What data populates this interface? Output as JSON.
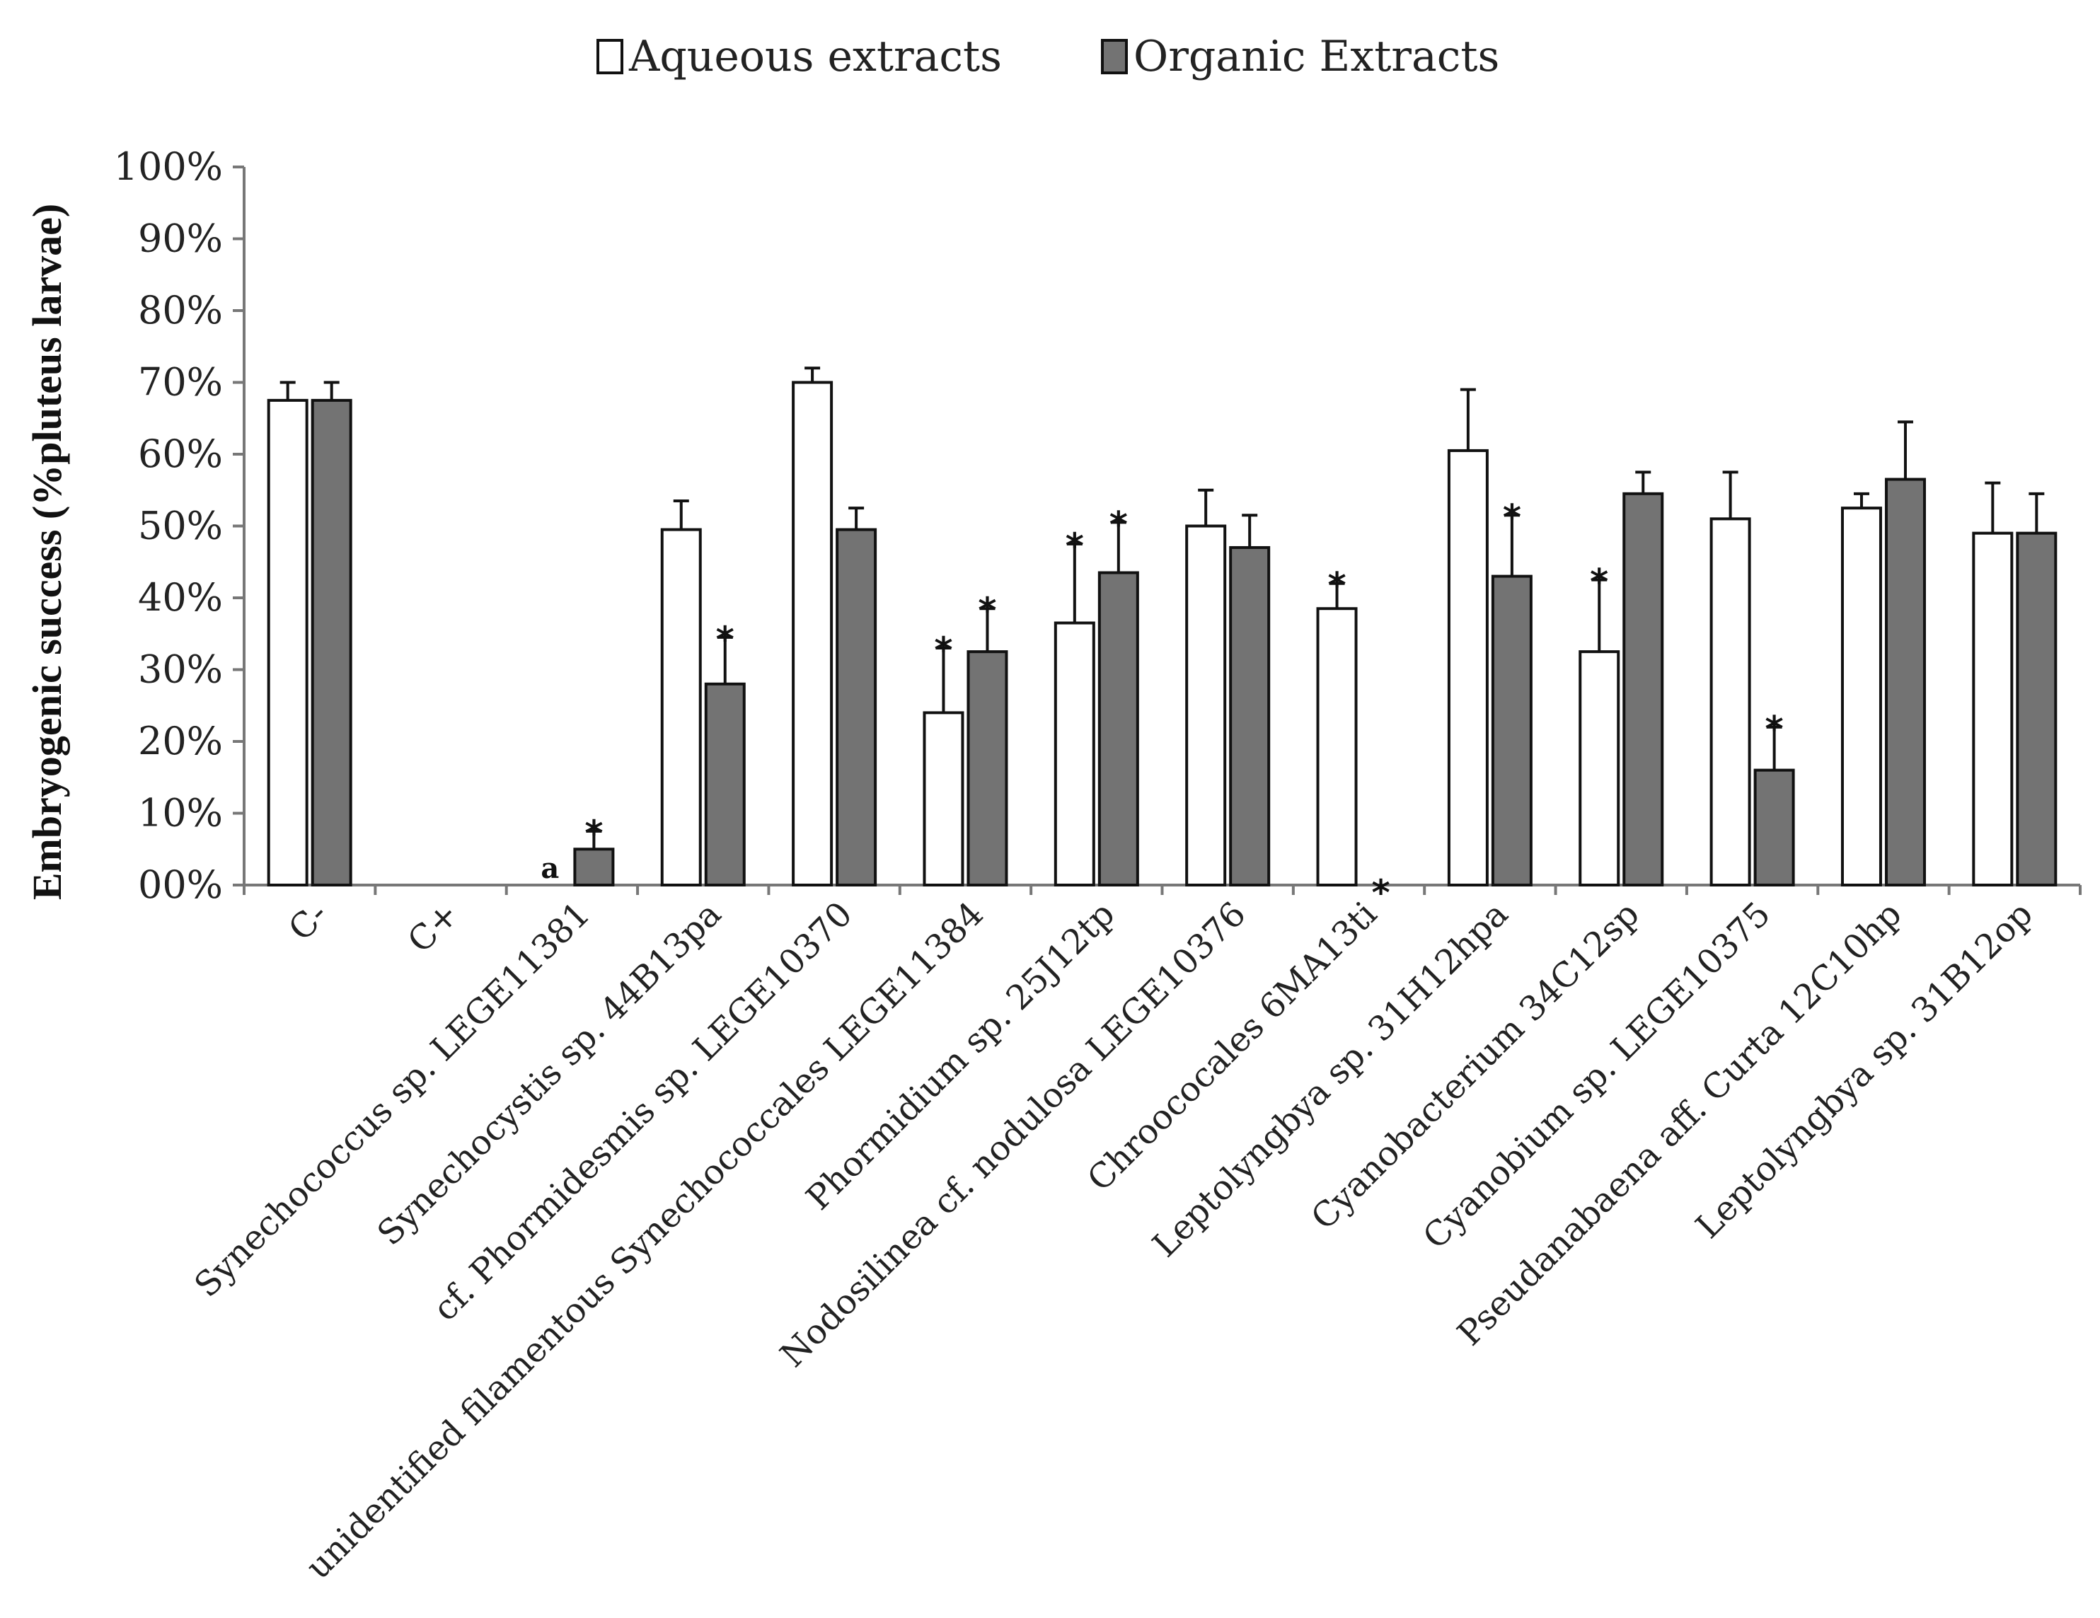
{
  "chart_data": {
    "type": "bar",
    "title": "",
    "xlabel": "",
    "ylabel": "Embryogenic success  (%pluteus larvae)",
    "ylim": [
      0,
      100
    ],
    "ytick_step": 10,
    "ytick_labels": [
      "00%",
      "10%",
      "20%",
      "30%",
      "40%",
      "50%",
      "60%",
      "70%",
      "80%",
      "90%",
      "100%"
    ],
    "legend_position": "top-center",
    "grid": false,
    "categories": [
      "C-",
      "C+",
      "Synechococcus sp. LEGE11381",
      "Synechocystis sp. 44B13pa",
      "cf. Phormidesmis sp. LEGE10370",
      "unidentified filamentous Synechococcales LEGE11384",
      "Phormidium sp. 25J12tp",
      "Nodosilinea cf. nodulosa LEGE10376",
      "Chroococales 6MA13ti",
      "Leptolyngbya sp. 31H12hpa",
      "Cyanobacterium 34C12sp",
      "Cyanobium sp. LEGE10375",
      "Pseudanabaena aff. Curta 12C10hp",
      "Leptolyngbya sp. 31B12op"
    ],
    "series": [
      {
        "name": "Aqueous extracts",
        "color": "#ffffff",
        "values": [
          67.5,
          0,
          0,
          49.5,
          70,
          24,
          36.5,
          50,
          38.5,
          60.5,
          32.5,
          51,
          52.5,
          49
        ],
        "errors": [
          2.5,
          0,
          0,
          4,
          2,
          9,
          11,
          5,
          3.5,
          8.5,
          10,
          6.5,
          2,
          7
        ],
        "significant": [
          false,
          false,
          false,
          false,
          false,
          true,
          true,
          false,
          true,
          false,
          true,
          false,
          false,
          false
        ]
      },
      {
        "name": "Organic Extracts",
        "color": "#737373",
        "values": [
          67.5,
          0,
          5,
          28,
          49.5,
          32.5,
          43.5,
          47,
          0,
          43,
          54.5,
          16,
          56.5,
          49
        ],
        "errors": [
          2.5,
          0,
          2.5,
          6.5,
          3,
          6,
          7,
          4.5,
          0,
          8.5,
          3,
          6,
          8,
          5.5
        ],
        "significant": [
          false,
          false,
          true,
          true,
          false,
          true,
          true,
          false,
          true,
          true,
          false,
          true,
          false,
          false
        ]
      }
    ],
    "annotations": [
      {
        "category": "Synechococcus sp. LEGE11381",
        "series": "Aqueous extracts",
        "text": "a"
      }
    ],
    "significance_marker": "*"
  }
}
